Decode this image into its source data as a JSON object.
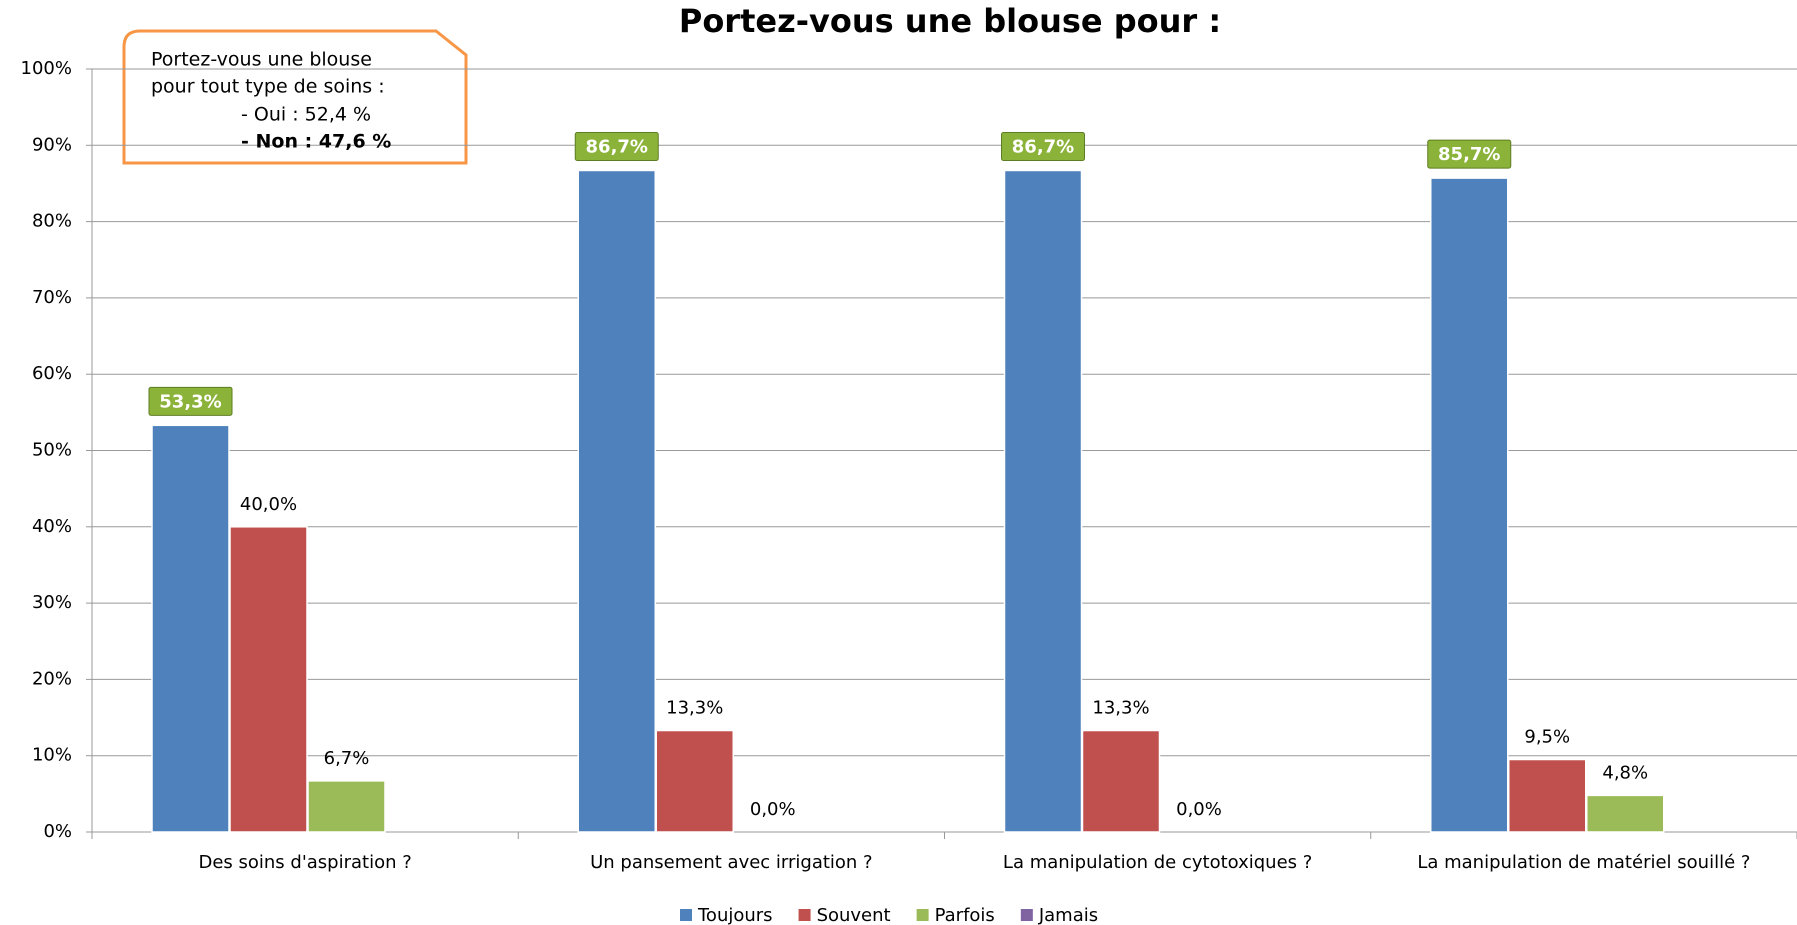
{
  "chart_data": {
    "type": "bar",
    "title": "Portez-vous une blouse pour :",
    "categories": [
      "Des soins d'aspiration ?",
      "Un pansement avec irrigation ?",
      "La manipulation de cytotoxiques ?",
      "La manipulation de matériel souillé ?"
    ],
    "series": [
      {
        "name": "Toujours",
        "color": "#4f81bd",
        "values": [
          53.3,
          86.7,
          86.7,
          85.7
        ],
        "value_labels": [
          "53,3%",
          "86,7%",
          "86,7%",
          "85,7%"
        ]
      },
      {
        "name": "Souvent",
        "color": "#c0504d",
        "values": [
          40.0,
          13.3,
          13.3,
          9.5
        ],
        "value_labels": [
          "40,0%",
          "13,3%",
          "13,3%",
          "9,5%"
        ]
      },
      {
        "name": "Parfois",
        "color": "#9bbb59",
        "values": [
          6.7,
          0.0,
          0.0,
          4.8
        ],
        "value_labels": [
          "6,7%",
          "0,0%",
          "0,0%",
          "4,8%"
        ]
      },
      {
        "name": "Jamais",
        "color": "#8064a2",
        "values": [
          null,
          null,
          null,
          null
        ]
      }
    ],
    "ylim": [
      0,
      100
    ],
    "yticks": [
      {
        "value": 0,
        "label": "0%"
      },
      {
        "value": 10,
        "label": "10%"
      },
      {
        "value": 20,
        "label": "20%"
      },
      {
        "value": 30,
        "label": "30%"
      },
      {
        "value": 40,
        "label": "40%"
      },
      {
        "value": 50,
        "label": "50%"
      },
      {
        "value": 60,
        "label": "60%"
      },
      {
        "value": 70,
        "label": "70%"
      },
      {
        "value": 80,
        "label": "80%"
      },
      {
        "value": 90,
        "label": "90%"
      },
      {
        "value": 100,
        "label": "100%"
      }
    ],
    "grid": true,
    "legend": "bottom",
    "annotation": [
      "Portez-vous une blouse",
      "pour tout type de soins :",
      "- Oui : 52,4 %",
      "- Non : 47,6 %"
    ]
  }
}
